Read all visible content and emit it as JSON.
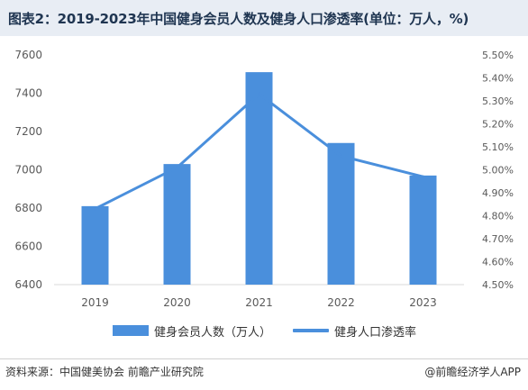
{
  "header": {
    "title": "图表2：2019-2023年中国健身会员人数及健身人口渗透率(单位：万人，%)"
  },
  "chart_data": {
    "type": "bar",
    "categories": [
      "2019",
      "2020",
      "2021",
      "2022",
      "2023"
    ],
    "series": [
      {
        "name": "健身会员人数（万人）",
        "type": "bar",
        "axis": "left",
        "values": [
          6810,
          7030,
          7510,
          7140,
          6970
        ]
      },
      {
        "name": "健身人口渗透率",
        "type": "line",
        "axis": "right",
        "values": [
          4.83,
          5.01,
          5.33,
          5.06,
          4.97
        ]
      }
    ],
    "y_left": {
      "ylim": [
        6400,
        7600
      ],
      "ticks": [
        "6400",
        "6600",
        "6800",
        "7000",
        "7200",
        "7400",
        "7600"
      ]
    },
    "y_right": {
      "ylim": [
        4.5,
        5.5
      ],
      "ticks": [
        "4.50%",
        "4.60%",
        "4.70%",
        "4.80%",
        "4.90%",
        "5.00%",
        "5.10%",
        "5.20%",
        "5.30%",
        "5.40%",
        "5.50%"
      ]
    },
    "grid": false,
    "legend": "bottom",
    "colors": {
      "bar": "#4a8fdc",
      "line": "#4a8fdc",
      "axis": "#d9d9d9",
      "text": "#595959"
    }
  },
  "footer": {
    "source": "资料来源：中国健美协会 前瞻产业研究院",
    "brand": "@前瞻经济学人APP"
  }
}
